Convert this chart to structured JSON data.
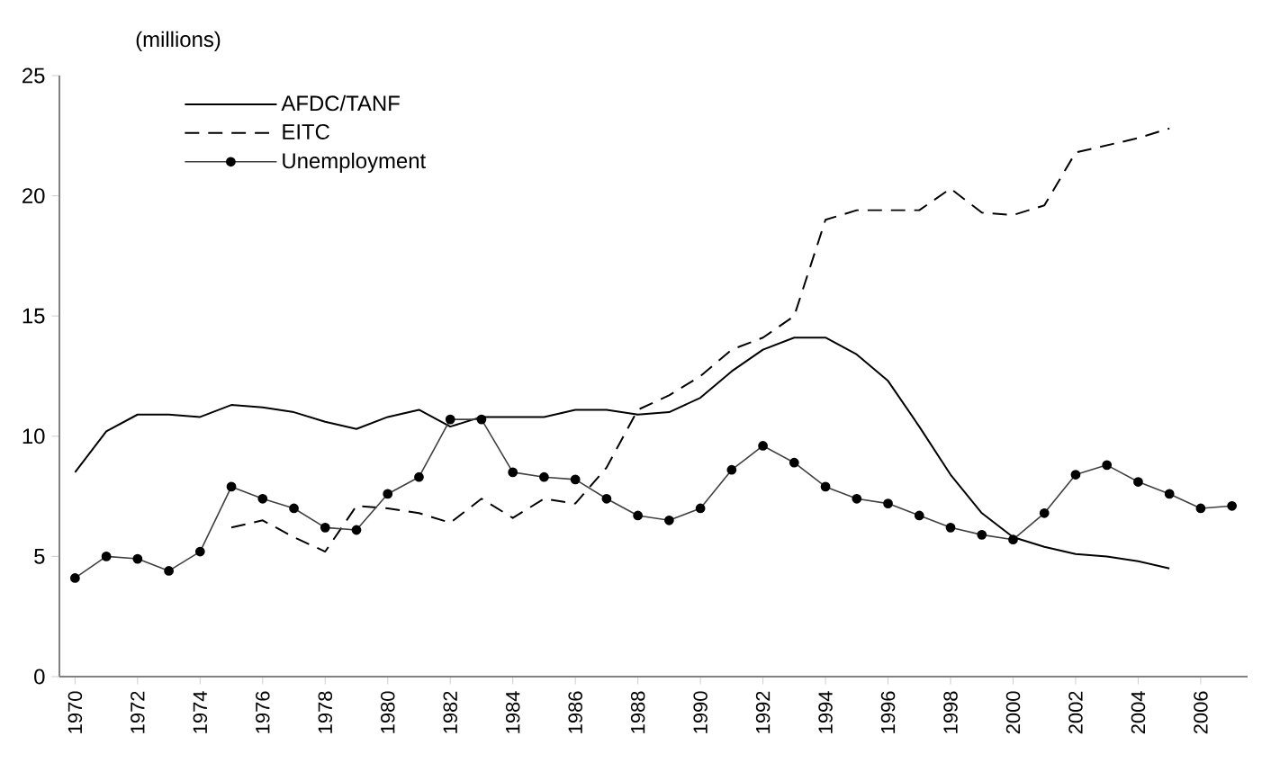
{
  "chart_data": {
    "type": "line",
    "ylabel": "(millions)",
    "x": [
      1970,
      1971,
      1972,
      1973,
      1974,
      1975,
      1976,
      1977,
      1978,
      1979,
      1980,
      1981,
      1982,
      1983,
      1984,
      1985,
      1986,
      1987,
      1988,
      1989,
      1990,
      1991,
      1992,
      1993,
      1994,
      1995,
      1996,
      1997,
      1998,
      1999,
      2000,
      2001,
      2002,
      2003,
      2004,
      2005,
      2006,
      2007
    ],
    "series": [
      {
        "name": "AFDC/TANF",
        "color": "#000000",
        "line_style": "solid",
        "marker": "none",
        "values": [
          8.5,
          10.2,
          10.9,
          10.9,
          10.8,
          11.3,
          11.2,
          11.0,
          10.6,
          10.3,
          10.8,
          11.1,
          10.4,
          10.8,
          10.8,
          10.8,
          11.1,
          11.1,
          10.9,
          11.0,
          11.6,
          12.7,
          13.6,
          14.1,
          14.1,
          13.4,
          12.3,
          10.4,
          8.4,
          6.8,
          5.8,
          5.4,
          5.1,
          5.0,
          4.8,
          4.5,
          null,
          null
        ]
      },
      {
        "name": "EITC",
        "color": "#000000",
        "line_style": "dashed",
        "marker": "none",
        "values": [
          null,
          null,
          null,
          null,
          null,
          6.2,
          6.5,
          5.8,
          5.2,
          7.1,
          7.0,
          6.8,
          6.4,
          7.4,
          6.6,
          7.4,
          7.2,
          8.7,
          11.1,
          11.7,
          12.5,
          13.6,
          14.1,
          15.0,
          19.0,
          19.4,
          19.4,
          19.4,
          20.3,
          19.3,
          19.2,
          19.6,
          21.8,
          22.1,
          22.4,
          22.8,
          null,
          null
        ]
      },
      {
        "name": "Unemployment",
        "color": "#404040",
        "line_style": "solid",
        "marker": "circle",
        "values": [
          4.1,
          5.0,
          4.9,
          4.4,
          5.2,
          7.9,
          7.4,
          7.0,
          6.2,
          6.1,
          7.6,
          8.3,
          10.7,
          10.7,
          8.5,
          8.3,
          8.2,
          7.4,
          6.7,
          6.5,
          7.0,
          8.6,
          9.6,
          8.9,
          7.9,
          7.4,
          7.2,
          6.7,
          6.2,
          5.9,
          5.7,
          6.8,
          8.4,
          8.8,
          8.1,
          7.6,
          7.0,
          7.1
        ]
      }
    ],
    "xlim": [
      1969.5,
      2007.5
    ],
    "xticks": [
      1970,
      1972,
      1974,
      1976,
      1978,
      1980,
      1982,
      1984,
      1986,
      1988,
      1990,
      1992,
      1994,
      1996,
      1998,
      2000,
      2002,
      2004,
      2006
    ],
    "ylim": [
      0,
      25
    ],
    "yticks": [
      0,
      5,
      10,
      15,
      20,
      25
    ],
    "grid": false,
    "legend": "top left"
  }
}
